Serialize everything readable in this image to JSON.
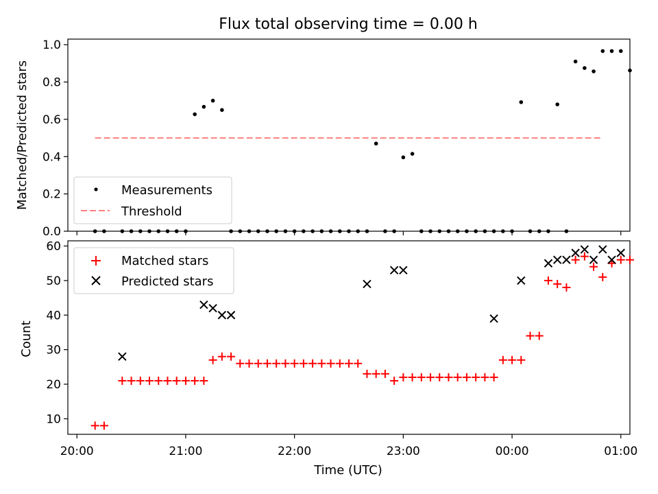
{
  "figure": {
    "title": "Flux total observing time = 0.00 h"
  },
  "chart_data": [
    {
      "type": "scatter",
      "panel": "top",
      "ylabel": "Matched/Predicted stars",
      "ylim": [
        0,
        1.03
      ],
      "yticks": [
        "0.0",
        "0.2",
        "0.4",
        "0.6",
        "0.8",
        "1.0"
      ],
      "ytick_values": [
        0.0,
        0.2,
        0.4,
        0.6,
        0.8,
        1.0
      ],
      "xlim_minutes": [
        -5,
        305
      ],
      "legend_position": "lower-left",
      "series": [
        {
          "name": "Measurements",
          "marker": "dot",
          "color": "#000000",
          "x_minutes": [
            10,
            15,
            25,
            30,
            35,
            40,
            45,
            50,
            55,
            60,
            65,
            70,
            75,
            80,
            85,
            90,
            95,
            100,
            105,
            110,
            115,
            120,
            125,
            130,
            135,
            140,
            145,
            150,
            155,
            160,
            165,
            170,
            175,
            180,
            185,
            190,
            195,
            200,
            205,
            210,
            215,
            220,
            225,
            230,
            235,
            240,
            245,
            250,
            255,
            260,
            265,
            270,
            275,
            280,
            285,
            290,
            295,
            300,
            305
          ],
          "y": [
            0,
            0,
            0,
            0,
            0,
            0,
            0,
            0,
            0,
            0,
            0.627,
            0.667,
            0.7,
            0.65,
            0,
            0,
            0,
            0,
            0,
            0,
            0,
            0,
            0,
            0,
            0,
            0,
            0,
            0,
            0,
            0,
            0.47,
            0,
            0,
            0.396,
            0.415,
            0,
            0,
            0,
            0,
            0,
            0,
            0,
            0,
            0,
            0,
            0,
            0.692,
            0,
            0,
            0,
            0.68,
            0,
            0.91,
            0.875,
            0.857,
            0.966,
            0.966,
            0.966,
            0.862
          ]
        },
        {
          "name": "Threshold",
          "style": "dashed",
          "color": "#ff8080",
          "x_minutes": [
            10,
            290
          ],
          "y": [
            0.5,
            0.5
          ]
        }
      ]
    },
    {
      "type": "scatter",
      "panel": "bottom",
      "xlabel": "Time (UTC)",
      "ylabel": "Count",
      "ylim": [
        5.5,
        61.5
      ],
      "yticks": [
        "10",
        "20",
        "30",
        "40",
        "50",
        "60"
      ],
      "ytick_values": [
        10,
        20,
        30,
        40,
        50,
        60
      ],
      "xticks": [
        "20:00",
        "21:00",
        "22:00",
        "23:00",
        "00:00",
        "01:00"
      ],
      "xtick_minutes": [
        0,
        60,
        120,
        180,
        240,
        300
      ],
      "xlim_minutes": [
        -5,
        305
      ],
      "legend_position": "upper-left",
      "series": [
        {
          "name": "Matched stars",
          "marker": "plus",
          "color": "#ff0000",
          "x_minutes": [
            10,
            15,
            25,
            30,
            35,
            40,
            45,
            50,
            55,
            60,
            65,
            70,
            75,
            80,
            85,
            90,
            95,
            100,
            105,
            110,
            115,
            120,
            125,
            130,
            135,
            140,
            145,
            150,
            155,
            160,
            165,
            170,
            175,
            180,
            185,
            190,
            195,
            200,
            205,
            210,
            215,
            220,
            225,
            230,
            235,
            240,
            245,
            250,
            255,
            260,
            265,
            270,
            275,
            280,
            285,
            290,
            295,
            300,
            305
          ],
          "y": [
            8,
            8,
            21,
            21,
            21,
            21,
            21,
            21,
            21,
            21,
            21,
            21,
            27,
            28,
            28,
            26,
            26,
            26,
            26,
            26,
            26,
            26,
            26,
            26,
            26,
            26,
            26,
            26,
            26,
            23,
            23,
            23,
            21,
            22,
            22,
            22,
            22,
            22,
            22,
            22,
            22,
            22,
            22,
            22,
            27,
            27,
            27,
            34,
            34,
            50,
            49,
            48,
            56,
            57,
            54,
            51,
            55,
            56,
            56
          ]
        },
        {
          "name": "Predicted stars",
          "marker": "x",
          "color": "#000000",
          "x_minutes": [
            25,
            70,
            75,
            80,
            85,
            160,
            175,
            180,
            230,
            245,
            260,
            265,
            270,
            275,
            280,
            285,
            290,
            295,
            300
          ],
          "y": [
            28,
            43,
            42,
            40,
            40,
            49,
            53,
            53,
            39,
            50,
            55,
            56,
            56,
            58,
            59,
            56,
            59,
            56,
            58
          ]
        }
      ]
    }
  ]
}
